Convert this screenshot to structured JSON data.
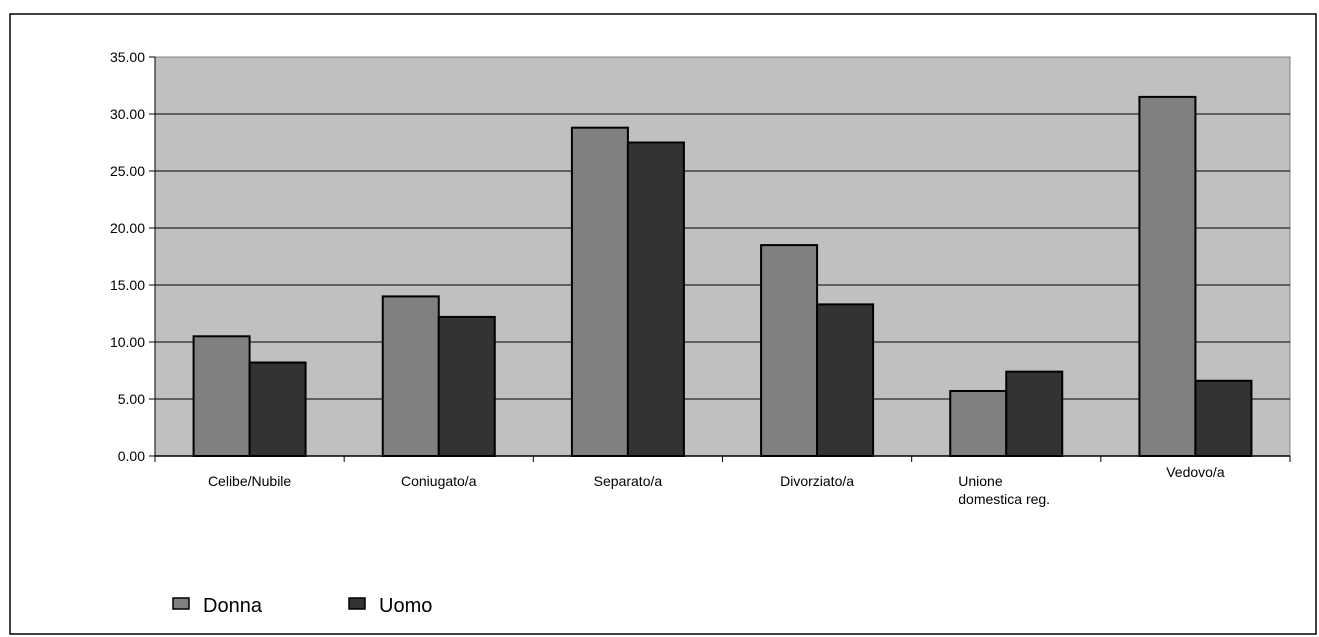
{
  "chart_data": {
    "type": "bar",
    "title": "",
    "xlabel": "",
    "ylabel": "",
    "categories": [
      [
        "Celibe/Nubile"
      ],
      [
        "Coniugato/a"
      ],
      [
        "Separato/a"
      ],
      [
        "Divorziato/a"
      ],
      [
        "Unione",
        "domestica reg."
      ],
      [
        "Vedovo/a"
      ]
    ],
    "series": [
      {
        "name": "Donna",
        "color": "#808080",
        "values": [
          10.5,
          14.0,
          28.8,
          18.5,
          5.7,
          31.5
        ]
      },
      {
        "name": "Uomo",
        "color": "#333333",
        "values": [
          8.2,
          12.2,
          27.5,
          13.3,
          7.4,
          6.6
        ]
      }
    ],
    "ylim": [
      0,
      35
    ],
    "yticks": [
      "0.00",
      "5.00",
      "10.00",
      "15.00",
      "20.00",
      "25.00",
      "30.00",
      "35.00"
    ],
    "grid": true,
    "plot_background": "#c0c0c0",
    "legend_position": "bottom-left"
  }
}
